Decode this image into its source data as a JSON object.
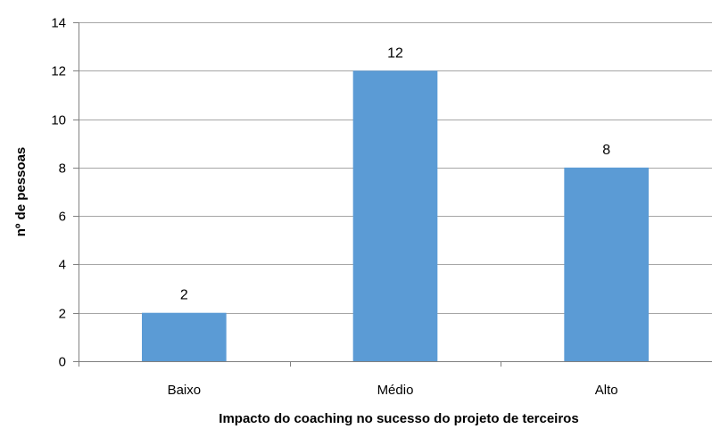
{
  "colors": {
    "bar": "#5B9BD5",
    "gridline": "#A6A6A6",
    "axis": "#808080",
    "background": "#FFFFFF"
  },
  "chart_data": {
    "type": "bar",
    "title": "",
    "categories": [
      "Baixo",
      "Médio",
      "Alto"
    ],
    "series": [
      {
        "values": [
          2,
          12,
          8
        ]
      }
    ],
    "data_labels": [
      "2",
      "12",
      "8"
    ],
    "xlabel": "Impacto do coaching no sucesso do projeto de terceiros",
    "ylabel": "nº de pessoas",
    "ylim": [
      0,
      14
    ],
    "yticks": [
      0,
      2,
      4,
      6,
      8,
      10,
      12,
      14
    ],
    "ytick_labels": [
      "0",
      "2",
      "4",
      "6",
      "8",
      "10",
      "12",
      "14"
    ],
    "grid": true,
    "legend": "none"
  }
}
